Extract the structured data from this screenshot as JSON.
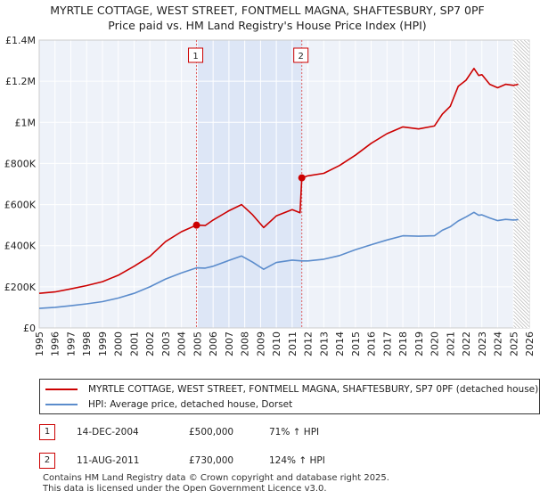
{
  "header": {
    "title_line1": "MYRTLE COTTAGE, WEST STREET, FONTMELL MAGNA, SHAFTESBURY, SP7 0PF",
    "title_line2": "Price paid vs. HM Land Registry's House Price Index (HPI)"
  },
  "chart_data": {
    "type": "line",
    "title": "Price paid vs. HM Land Registry's House Price Index (HPI)",
    "xlabel": "",
    "ylabel": "",
    "xlim": [
      1995,
      2026
    ],
    "ylim": [
      0,
      1400000
    ],
    "y_ticks": [
      0,
      200000,
      400000,
      600000,
      800000,
      1000000,
      1200000,
      1400000
    ],
    "y_tick_labels": [
      "£0",
      "£200K",
      "£400K",
      "£600K",
      "£800K",
      "£1M",
      "£1.2M",
      "£1.4M"
    ],
    "x_ticks": [
      "1995",
      "1996",
      "1997",
      "1998",
      "1999",
      "2000",
      "2001",
      "2002",
      "2003",
      "2004",
      "2005",
      "2006",
      "2007",
      "2008",
      "2009",
      "2010",
      "2011",
      "2012",
      "2013",
      "2014",
      "2015",
      "2016",
      "2017",
      "2018",
      "2019",
      "2020",
      "2021",
      "2022",
      "2023",
      "2024",
      "2025",
      "2026"
    ],
    "grid": true,
    "shaded_span": [
      2004.95,
      2011.61
    ],
    "forecast_start": 2025.0,
    "series": [
      {
        "name": "MYRTLE COTTAGE, WEST STREET, FONTMELL MAGNA, SHAFTESBURY, SP7 0PF (detached house)",
        "color": "#cc0000",
        "x": [
          1995,
          1996,
          1997,
          1998,
          1999,
          2000,
          2001,
          2002,
          2003,
          2004,
          2004.95,
          2005.5,
          2006,
          2007,
          2007.8,
          2008.5,
          2009.2,
          2010,
          2011,
          2011.5,
          2011.61,
          2012,
          2013,
          2014,
          2015,
          2016,
          2017,
          2018,
          2019,
          2020,
          2020.5,
          2021,
          2021.5,
          2022,
          2022.5,
          2022.8,
          2023,
          2023.5,
          2024,
          2024.5,
          2025,
          2025.3
        ],
        "y": [
          168000,
          175000,
          190000,
          206000,
          225000,
          256000,
          300000,
          348000,
          420000,
          468000,
          500000,
          498000,
          525000,
          570000,
          600000,
          550000,
          488000,
          545000,
          575000,
          560000,
          730000,
          740000,
          752000,
          790000,
          840000,
          898000,
          945000,
          978000,
          968000,
          982000,
          1040000,
          1078000,
          1175000,
          1205000,
          1262000,
          1228000,
          1232000,
          1185000,
          1168000,
          1185000,
          1180000,
          1185000
        ]
      },
      {
        "name": "HPI: Average price, detached house, Dorset",
        "color": "#5b8ccc",
        "x": [
          1995,
          1996,
          1997,
          1998,
          1999,
          2000,
          2001,
          2002,
          2003,
          2004,
          2004.95,
          2005.5,
          2006,
          2007,
          2007.8,
          2008.5,
          2009.2,
          2010,
          2011,
          2011.61,
          2012,
          2013,
          2014,
          2015,
          2016,
          2017,
          2018,
          2019,
          2020,
          2020.5,
          2021,
          2021.5,
          2022,
          2022.5,
          2022.8,
          2023,
          2023.5,
          2024,
          2024.5,
          2025,
          2025.3
        ],
        "y": [
          95000,
          100000,
          108000,
          117000,
          128000,
          145000,
          168000,
          200000,
          238000,
          268000,
          292000,
          291000,
          300000,
          328000,
          350000,
          320000,
          285000,
          318000,
          330000,
          326000,
          326000,
          334000,
          352000,
          380000,
          405000,
          428000,
          448000,
          446000,
          448000,
          475000,
          492000,
          520000,
          540000,
          562000,
          548000,
          550000,
          535000,
          522000,
          528000,
          525000,
          527000
        ]
      }
    ],
    "annotations": [
      {
        "label": "1",
        "x": 2004.95,
        "y": 500000
      },
      {
        "label": "2",
        "x": 2011.61,
        "y": 730000
      }
    ]
  },
  "legend": {
    "items": [
      {
        "label": "MYRTLE COTTAGE, WEST STREET, FONTMELL MAGNA, SHAFTESBURY, SP7 0PF (detached house)",
        "color": "#cc0000"
      },
      {
        "label": "HPI: Average price, detached house, Dorset",
        "color": "#5b8ccc"
      }
    ]
  },
  "transactions": [
    {
      "num": "1",
      "date": "14-DEC-2004",
      "price": "£500,000",
      "hpi": "71% ↑ HPI"
    },
    {
      "num": "2",
      "date": "11-AUG-2011",
      "price": "£730,000",
      "hpi": "124% ↑ HPI"
    }
  ],
  "footer": {
    "line1": "Contains HM Land Registry data © Crown copyright and database right 2025.",
    "line2": "This data is licensed under the Open Government Licence v3.0."
  }
}
